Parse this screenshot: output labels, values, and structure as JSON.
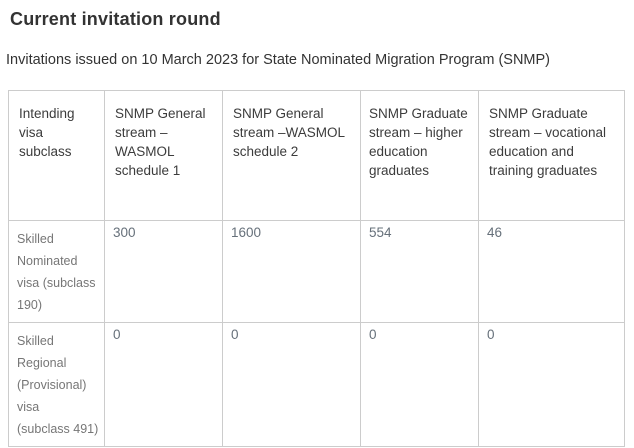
{
  "page": {
    "title": "Current invitation round",
    "subtitle": "Invitations issued on 10 March 2023 for State Nominated Migration Program (SNMP)"
  },
  "table": {
    "columns": [
      "Intending visa subclass",
      "SNMP General stream – WASMOL schedule 1",
      "SNMP General stream –WASMOL schedule 2",
      "SNMP Graduate stream – higher education graduates",
      "SNMP Graduate stream – vocational education and training graduates"
    ],
    "rows": [
      {
        "label": "Skilled Nominated visa (subclass 190)",
        "values": [
          "300",
          "1600",
          "554",
          "46"
        ]
      },
      {
        "label": "Skilled Regional (Provisional) visa (subclass 491)",
        "values": [
          "0",
          "0",
          "0",
          "0"
        ]
      }
    ]
  },
  "colors": {
    "title_text": "#333333",
    "header_text": "#3c3c3c",
    "row_label_text": "#767676",
    "value_text": "#66707a",
    "border": "#cccccc",
    "background": "#ffffff"
  }
}
